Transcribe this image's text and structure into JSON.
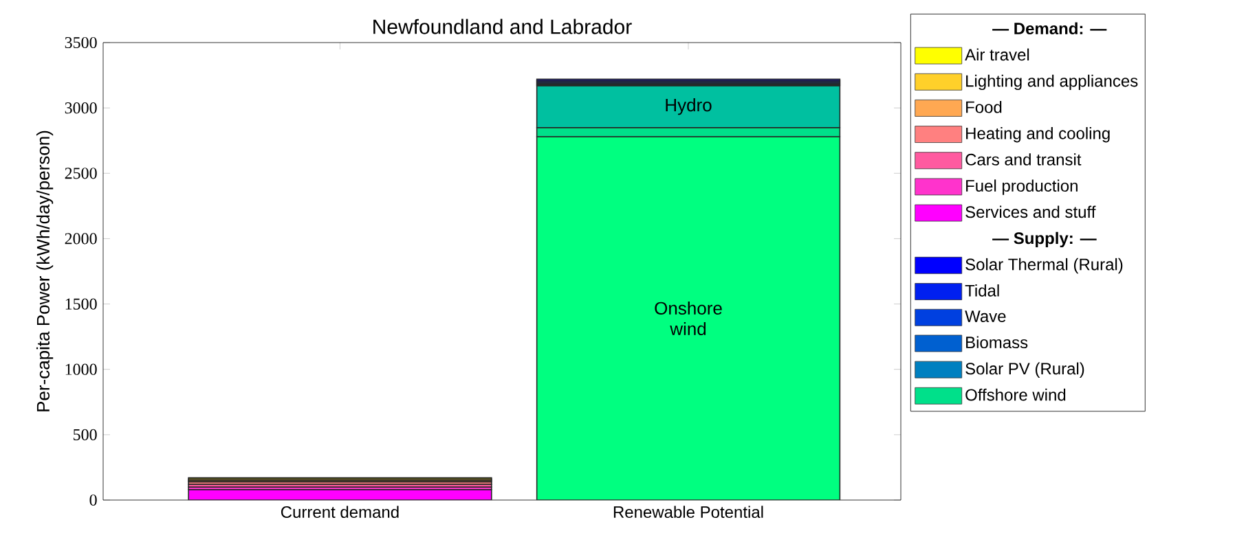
{
  "chart_data": {
    "type": "bar",
    "stacked": true,
    "title": "Newfoundland and Labrador",
    "ylabel": "Per-capita Power (kWh/day/person)",
    "categories": [
      "Current demand",
      "Renewable Potential"
    ],
    "ylim": [
      0,
      3500
    ],
    "yticks": [
      0,
      500,
      1000,
      1500,
      2000,
      2500,
      3000,
      3500
    ],
    "legend": "right",
    "series": [
      {
        "name": "Services and stuff",
        "color": "#ff00ff",
        "values": [
          80,
          null
        ]
      },
      {
        "name": "Fuel production",
        "color": "#ff33cc",
        "values": [
          20,
          null
        ]
      },
      {
        "name": "Cars and transit",
        "color": "#ff5aa0",
        "values": [
          20,
          null
        ]
      },
      {
        "name": "Heating and cooling",
        "color": "#ff8080",
        "values": [
          20,
          null
        ]
      },
      {
        "name": "Food",
        "color": "#ffa852",
        "values": [
          10,
          null
        ]
      },
      {
        "name": "Lighting and appliances",
        "color": "#ffd02a",
        "values": [
          10,
          null
        ]
      },
      {
        "name": "Air travel",
        "color": "#ffff00",
        "values": [
          10,
          null
        ]
      },
      {
        "name": "Onshore wind",
        "color": "#00ff80",
        "values": [
          null,
          2780
        ]
      },
      {
        "name": "Offshore wind",
        "color": "#00e08a",
        "values": [
          null,
          70
        ]
      },
      {
        "name": "Hydro",
        "color": "#00c0a0",
        "values": [
          null,
          320
        ]
      },
      {
        "name": "Solar PV (Rural)",
        "color": "#0080c0",
        "values": [
          null,
          10
        ]
      },
      {
        "name": "Biomass",
        "color": "#0060d0",
        "values": [
          null,
          10
        ]
      },
      {
        "name": "Wave",
        "color": "#0040e0",
        "values": [
          null,
          10
        ]
      },
      {
        "name": "Tidal",
        "color": "#0020f0",
        "values": [
          null,
          10
        ]
      },
      {
        "name": "Solar Thermal (Rural)",
        "color": "#0000ff",
        "values": [
          null,
          10
        ]
      }
    ],
    "annotations": [
      "— Demand: —",
      "— Supply: —"
    ]
  }
}
